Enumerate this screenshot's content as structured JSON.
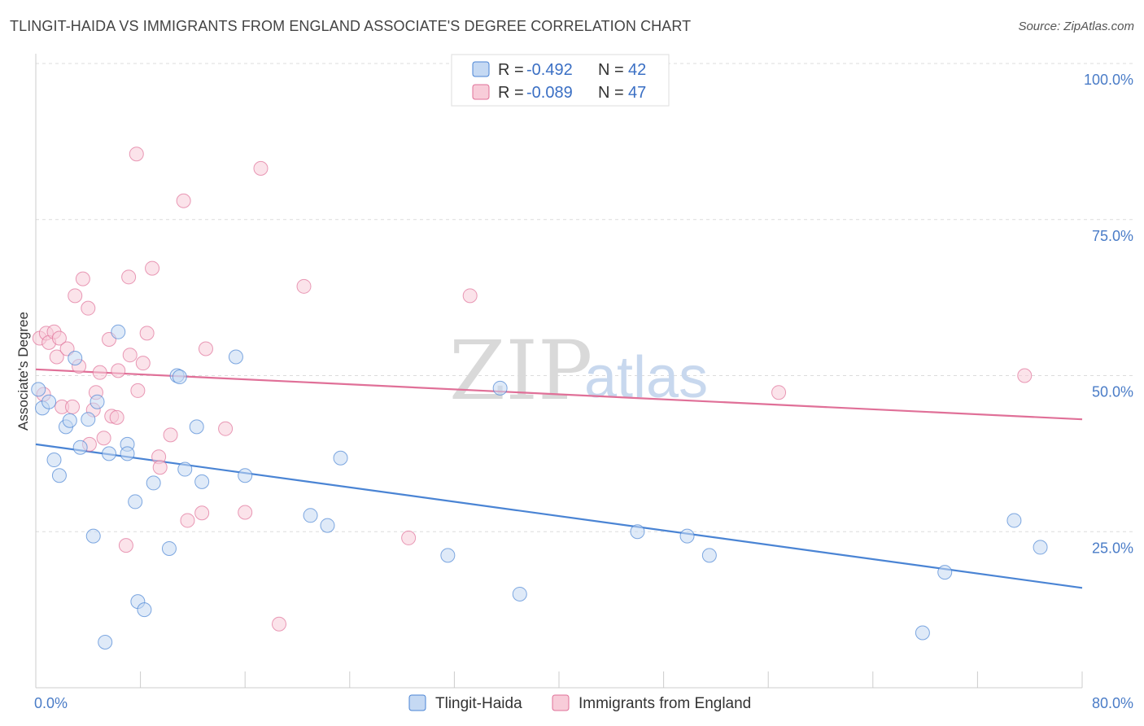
{
  "header": {
    "title": "TLINGIT-HAIDA VS IMMIGRANTS FROM ENGLAND ASSOCIATE'S DEGREE CORRELATION CHART",
    "source": "Source: ZipAtlas.com"
  },
  "watermark": {
    "zip": "ZIP",
    "atlas": "atlas"
  },
  "legend": {
    "r_label": "R =",
    "n_label": "N =",
    "rows": [
      {
        "r": "-0.492",
        "n": "42"
      },
      {
        "r": "-0.089",
        "n": "47"
      }
    ]
  },
  "chart_data": {
    "type": "scatter",
    "title": "TLINGIT-HAIDA VS IMMIGRANTS FROM ENGLAND ASSOCIATE'S DEGREE CORRELATION CHART",
    "xlabel": "",
    "ylabel": "Associate's Degree",
    "xlim": [
      0,
      80
    ],
    "ylim": [
      0,
      100
    ],
    "x_tick_labels": [
      "0.0%",
      "80.0%"
    ],
    "y_ticks": [
      {
        "value": 100,
        "label": "100.0%"
      },
      {
        "value": 75,
        "label": "75.0%"
      },
      {
        "value": 50,
        "label": "50.0%"
      },
      {
        "value": 25,
        "label": "25.0%"
      }
    ],
    "colors": {
      "tlingit": "#4a84d4",
      "tlingit_fill": "#c5d9f3",
      "england": "#e07098",
      "england_fill": "#f8ccd9",
      "tick_label": "#4a7cc7"
    },
    "series": [
      {
        "name": "Tlingit-Haida",
        "r": -0.492,
        "n": 42,
        "trend": {
          "x": [
            0,
            80
          ],
          "y": [
            39.0,
            16.0
          ]
        },
        "points": [
          [
            0.2,
            47.8
          ],
          [
            0.5,
            44.8
          ],
          [
            1.0,
            45.8
          ],
          [
            1.4,
            36.5
          ],
          [
            1.8,
            34.0
          ],
          [
            2.3,
            41.8
          ],
          [
            2.6,
            42.8
          ],
          [
            3.0,
            52.8
          ],
          [
            3.4,
            38.5
          ],
          [
            4.0,
            43.0
          ],
          [
            4.4,
            24.3
          ],
          [
            4.7,
            45.8
          ],
          [
            5.3,
            7.3
          ],
          [
            5.6,
            37.5
          ],
          [
            6.3,
            57.0
          ],
          [
            7.0,
            39.0
          ],
          [
            7.0,
            37.5
          ],
          [
            7.6,
            29.8
          ],
          [
            7.8,
            13.8
          ],
          [
            8.3,
            12.5
          ],
          [
            9.0,
            32.8
          ],
          [
            10.2,
            22.3
          ],
          [
            10.8,
            50.0
          ],
          [
            11.0,
            49.8
          ],
          [
            11.4,
            35.0
          ],
          [
            12.3,
            41.8
          ],
          [
            12.7,
            33.0
          ],
          [
            15.3,
            53.0
          ],
          [
            16.0,
            34.0
          ],
          [
            21.0,
            27.6
          ],
          [
            22.3,
            26.0
          ],
          [
            23.3,
            36.8
          ],
          [
            31.5,
            21.2
          ],
          [
            35.5,
            48.0
          ],
          [
            37.0,
            15.0
          ],
          [
            46.0,
            25.0
          ],
          [
            49.8,
            24.3
          ],
          [
            51.5,
            21.2
          ],
          [
            67.8,
            8.8
          ],
          [
            69.5,
            18.5
          ],
          [
            74.8,
            26.8
          ],
          [
            76.8,
            22.5
          ]
        ]
      },
      {
        "name": "Immigrants from England",
        "r": -0.089,
        "n": 47,
        "trend": {
          "x": [
            0,
            80
          ],
          "y": [
            51.0,
            43.0
          ]
        },
        "points": [
          [
            0.3,
            56.0
          ],
          [
            0.6,
            47.0
          ],
          [
            0.8,
            56.8
          ],
          [
            1.0,
            55.3
          ],
          [
            1.4,
            57.0
          ],
          [
            1.6,
            53.0
          ],
          [
            1.8,
            56.0
          ],
          [
            2.0,
            45.0
          ],
          [
            2.4,
            54.3
          ],
          [
            2.8,
            45.0
          ],
          [
            3.0,
            62.8
          ],
          [
            3.3,
            51.5
          ],
          [
            3.6,
            65.5
          ],
          [
            4.0,
            60.8
          ],
          [
            4.1,
            39.0
          ],
          [
            4.4,
            44.5
          ],
          [
            4.6,
            47.3
          ],
          [
            4.9,
            50.5
          ],
          [
            5.2,
            40.0
          ],
          [
            5.6,
            55.8
          ],
          [
            5.8,
            43.5
          ],
          [
            6.2,
            43.3
          ],
          [
            6.3,
            50.8
          ],
          [
            6.9,
            22.8
          ],
          [
            7.1,
            65.8
          ],
          [
            7.2,
            53.3
          ],
          [
            7.7,
            85.5
          ],
          [
            7.8,
            47.6
          ],
          [
            8.2,
            52.0
          ],
          [
            8.5,
            56.8
          ],
          [
            8.9,
            67.2
          ],
          [
            9.4,
            37.0
          ],
          [
            9.5,
            35.3
          ],
          [
            10.3,
            40.5
          ],
          [
            11.3,
            78.0
          ],
          [
            11.6,
            26.8
          ],
          [
            12.7,
            28.0
          ],
          [
            13.0,
            54.3
          ],
          [
            14.5,
            41.5
          ],
          [
            16.0,
            28.1
          ],
          [
            17.2,
            83.2
          ],
          [
            18.6,
            10.2
          ],
          [
            20.5,
            64.3
          ],
          [
            28.5,
            24.0
          ],
          [
            33.2,
            62.8
          ],
          [
            56.8,
            47.3
          ],
          [
            75.6,
            50.0
          ]
        ]
      }
    ]
  }
}
